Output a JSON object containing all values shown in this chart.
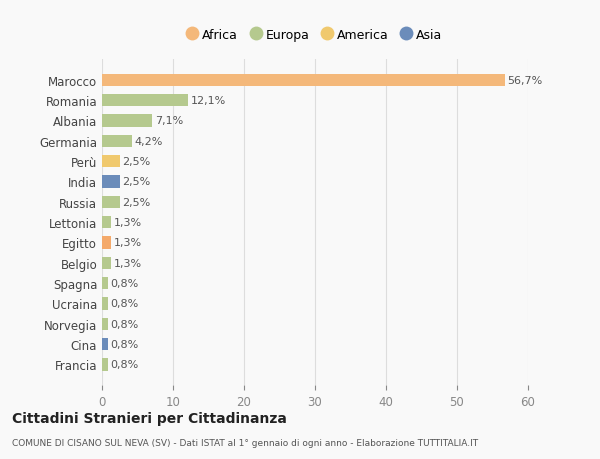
{
  "countries": [
    "Francia",
    "Cina",
    "Norvegia",
    "Ucraina",
    "Spagna",
    "Belgio",
    "Egitto",
    "Lettonia",
    "Russia",
    "India",
    "Perù",
    "Germania",
    "Albania",
    "Romania",
    "Marocco"
  ],
  "values": [
    0.8,
    0.8,
    0.8,
    0.8,
    0.8,
    1.3,
    1.3,
    1.3,
    2.5,
    2.5,
    2.5,
    4.2,
    7.1,
    12.1,
    56.7
  ],
  "labels": [
    "0,8%",
    "0,8%",
    "0,8%",
    "0,8%",
    "0,8%",
    "1,3%",
    "1,3%",
    "1,3%",
    "2,5%",
    "2,5%",
    "2,5%",
    "4,2%",
    "7,1%",
    "12,1%",
    "56,7%"
  ],
  "colors": [
    "#b5c98e",
    "#6b8cba",
    "#b5c98e",
    "#b5c98e",
    "#b5c98e",
    "#b5c98e",
    "#f4a96a",
    "#b5c98e",
    "#b5c98e",
    "#6b8cba",
    "#f0c96e",
    "#b5c98e",
    "#b5c98e",
    "#b5c98e",
    "#f4b87a"
  ],
  "legend_labels": [
    "Africa",
    "Europa",
    "America",
    "Asia"
  ],
  "legend_colors": [
    "#f4b87a",
    "#b5c98e",
    "#f0c96e",
    "#6b8cba"
  ],
  "xlim": [
    0,
    60
  ],
  "xticks": [
    0,
    10,
    20,
    30,
    40,
    50,
    60
  ],
  "title": "Cittadini Stranieri per Cittadinanza",
  "subtitle": "COMUNE DI CISANO SUL NEVA (SV) - Dati ISTAT al 1° gennaio di ogni anno - Elaborazione TUTTITALIA.IT",
  "bg_color": "#f9f9f9",
  "grid_color": "#dddddd",
  "bar_height": 0.6
}
